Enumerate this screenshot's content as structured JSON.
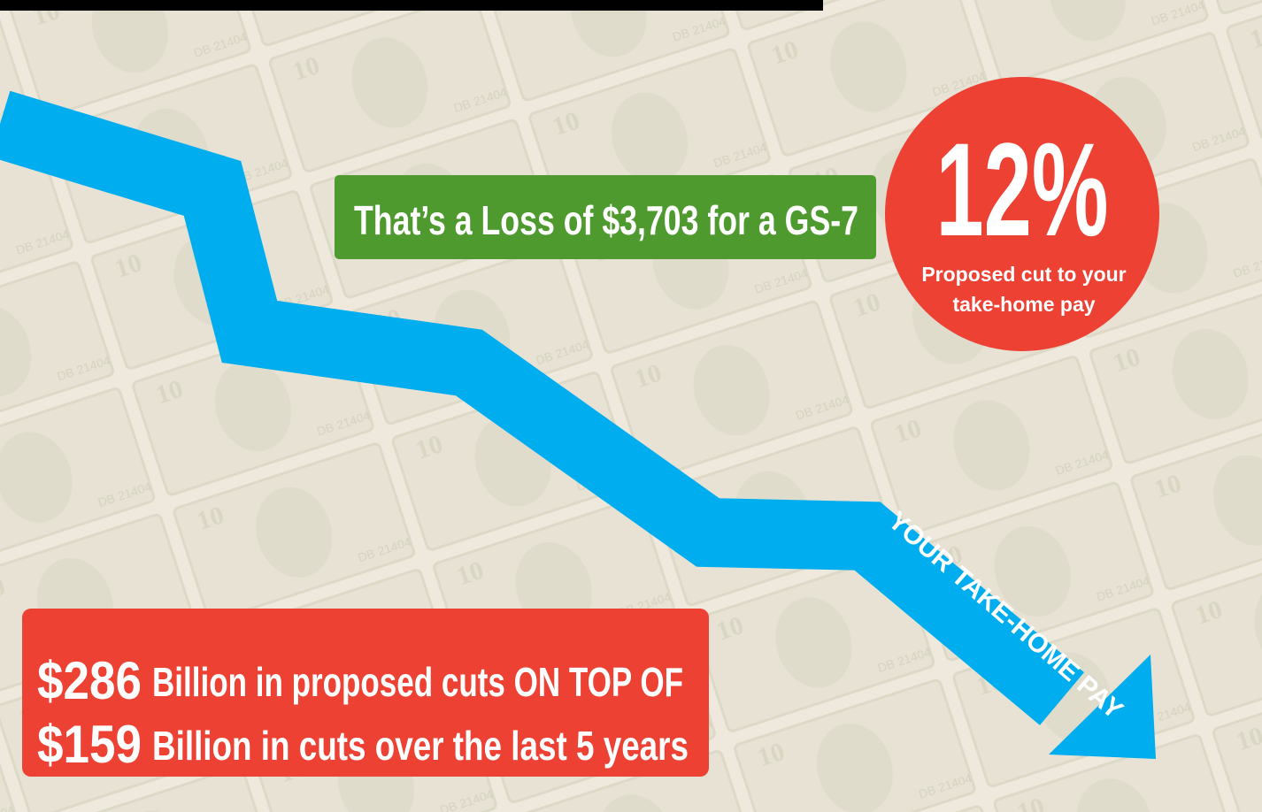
{
  "banner": {
    "loss": "That’s a Loss of $3,703 for a GS-7",
    "percent": "12%",
    "caption": [
      "Proposed cut to your",
      "take-home pay"
    ]
  },
  "arrow_label": "YOUR TAKE-HOME PAY",
  "cuts": [
    {
      "amount": "$286",
      "text": "Billion in proposed cuts ON TOP OF"
    },
    {
      "amount": "$159",
      "text": "Billion in cuts over the last 5 years"
    }
  ]
}
